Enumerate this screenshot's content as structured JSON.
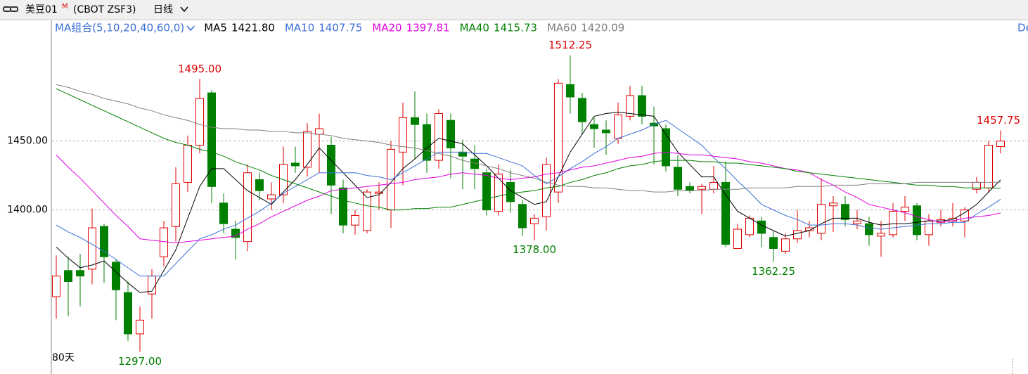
{
  "chart_data": {
    "type": "candlestick",
    "title": "美豆01",
    "title_sup": "M",
    "subtitle": "(CBOT ZSF3)",
    "period": "日线",
    "ma_label": "MA组合(5,10,20,40,60,0)",
    "span_label": "80天",
    "corner_label": "De",
    "up_color": "#e00000",
    "down_color": "#008000",
    "open": [
      1337,
      1356,
      1356,
      1357,
      1388,
      1362,
      1340,
      1310,
      1339,
      1366,
      1388,
      1420,
      1447,
      1485,
      1405,
      1386,
      1377,
      1422,
      1408,
      1411,
      1434,
      1431,
      1455,
      1447,
      1416,
      1389,
      1385,
      1412,
      1400,
      1442,
      1467,
      1462,
      1436,
      1465,
      1442,
      1437,
      1427,
      1399,
      1420,
      1404,
      1390,
      1395,
      1413,
      1491,
      1481,
      1462,
      1458,
      1452,
      1468,
      1483,
      1463,
      1459,
      1431,
      1417,
      1415,
      1415,
      1420,
      1372,
      1382,
      1392,
      1380,
      1370,
      1379,
      1385,
      1383,
      1403,
      1404,
      1390,
      1390,
      1381,
      1382,
      1399,
      1403,
      1382,
      1391,
      1392,
      1392,
      1415,
      1416,
      1446
    ],
    "high": [
      1367,
      1366,
      1368,
      1401,
      1390,
      1364,
      1348,
      1330,
      1357,
      1392,
      1431,
      1454,
      1495,
      1487,
      1412,
      1392,
      1433,
      1427,
      1420,
      1446,
      1446,
      1463,
      1470,
      1453,
      1422,
      1400,
      1415,
      1420,
      1450,
      1478,
      1486,
      1470,
      1473,
      1470,
      1451,
      1447,
      1430,
      1433,
      1429,
      1407,
      1397,
      1438,
      1495,
      1512.25,
      1485,
      1467,
      1465,
      1478,
      1490,
      1490,
      1475,
      1462,
      1440,
      1420,
      1419,
      1432,
      1435,
      1390,
      1396,
      1395,
      1385,
      1383,
      1400,
      1392,
      1423,
      1410,
      1410,
      1400,
      1395,
      1392,
      1405,
      1410,
      1405,
      1397,
      1400,
      1405,
      1402,
      1424,
      1450,
      1457.75
    ],
    "low": [
      1321,
      1323,
      1330,
      1346,
      1347,
      1320,
      1305,
      1297,
      1321,
      1359,
      1377,
      1413,
      1441,
      1405,
      1383,
      1364,
      1370,
      1407,
      1400,
      1405,
      1427,
      1424,
      1427,
      1397,
      1383,
      1382,
      1383,
      1400,
      1387,
      1418,
      1437,
      1427,
      1430,
      1423,
      1415,
      1415,
      1396,
      1396,
      1398,
      1381,
      1378,
      1385,
      1405,
      1470,
      1455,
      1445,
      1440,
      1448,
      1465,
      1462,
      1433,
      1428,
      1410,
      1412,
      1397,
      1412,
      1373,
      1372,
      1380,
      1373,
      1362.25,
      1368,
      1376,
      1380,
      1378,
      1384,
      1388,
      1386,
      1374,
      1366,
      1380,
      1392,
      1378,
      1374,
      1388,
      1388,
      1380,
      1412,
      1413,
      1441
    ],
    "close": [
      1352,
      1348,
      1352,
      1387,
      1366,
      1342,
      1310,
      1320,
      1352,
      1387,
      1419,
      1447,
      1481,
      1417,
      1390,
      1380,
      1427,
      1414,
      1411,
      1433,
      1432,
      1457,
      1459,
      1418,
      1389,
      1396,
      1413,
      1413,
      1444,
      1467,
      1462,
      1436,
      1470,
      1445,
      1439,
      1430,
      1400,
      1426,
      1406,
      1387,
      1394,
      1433,
      1492,
      1482,
      1464,
      1459,
      1456,
      1469,
      1483,
      1468,
      1461,
      1432,
      1415,
      1414,
      1417,
      1420,
      1375,
      1386,
      1394,
      1383,
      1372,
      1379,
      1385,
      1387,
      1404,
      1405,
      1393,
      1392,
      1382,
      1383,
      1399,
      1402,
      1382,
      1392,
      1393,
      1394,
      1400,
      1420,
      1447,
      1450
    ],
    "series": [
      {
        "name": "MA5",
        "legend_value": "1421.80",
        "color": "#000000",
        "values": [
          1373,
          1365,
          1358,
          1360,
          1363,
          1355,
          1347,
          1340,
          1341,
          1356,
          1371,
          1394,
          1417,
          1430,
          1430,
          1422,
          1414,
          1409,
          1404,
          1413,
          1422,
          1433,
          1445,
          1436,
          1427,
          1418,
          1409,
          1411,
          1420,
          1430,
          1437,
          1445,
          1452,
          1450,
          1448,
          1440,
          1432,
          1423,
          1414,
          1409,
          1404,
          1406,
          1424,
          1442,
          1455,
          1468,
          1470,
          1471,
          1470,
          1469,
          1468,
          1455,
          1442,
          1433,
          1424,
          1424,
          1411,
          1399,
          1394,
          1389,
          1385,
          1381,
          1383,
          1385,
          1390,
          1394,
          1394,
          1394,
          1391,
          1389,
          1390,
          1390,
          1391,
          1392,
          1392,
          1393,
          1398,
          1404,
          1413,
          1421.8
        ]
      },
      {
        "name": "MA10",
        "legend_value": "1407.75",
        "color": "#3b6fd6",
        "values": [
          1389,
          1384,
          1380,
          1375,
          1370,
          1364,
          1358,
          1352,
          1352,
          1352,
          1361,
          1370,
          1379,
          1382,
          1386,
          1389,
          1394,
          1399,
          1405,
          1412,
          1417,
          1422,
          1427,
          1427,
          1427,
          1427,
          1425,
          1424,
          1422,
          1427,
          1432,
          1437,
          1442,
          1442,
          1442,
          1441,
          1441,
          1438,
          1435,
          1432,
          1425,
          1419,
          1424,
          1430,
          1435,
          1441,
          1446,
          1452,
          1455,
          1458,
          1462,
          1465,
          1459,
          1453,
          1447,
          1438,
          1430,
          1421,
          1413,
          1404,
          1400,
          1396,
          1393,
          1389,
          1389,
          1390,
          1390,
          1389,
          1387,
          1386,
          1387,
          1388,
          1389,
          1390,
          1390,
          1391,
          1391,
          1397,
          1402,
          1407.75
        ]
      },
      {
        "name": "MA20",
        "legend_value": "1397.81",
        "color": "#e000e0",
        "values": [
          1440,
          1431,
          1423,
          1414,
          1405,
          1396,
          1388,
          1379,
          1378,
          1377,
          1376,
          1377,
          1378,
          1379,
          1380,
          1381,
          1386,
          1390,
          1395,
          1399,
          1403,
          1407,
          1410,
          1414,
          1415,
          1416,
          1417,
          1418,
          1419,
          1420,
          1422,
          1423,
          1424,
          1426,
          1427,
          1426,
          1425,
          1423,
          1422,
          1423,
          1424,
          1426,
          1427,
          1429,
          1431,
          1432,
          1434,
          1436,
          1438,
          1439,
          1441,
          1442,
          1441,
          1440,
          1440,
          1439,
          1438,
          1437,
          1435,
          1434,
          1432,
          1430,
          1429,
          1427,
          1422,
          1418,
          1413,
          1409,
          1404,
          1402,
          1400,
          1398,
          1395,
          1393,
          1391,
          1392,
          1394,
          1395,
          1396,
          1397.81
        ]
      },
      {
        "name": "MA40",
        "legend_value": "1415.73",
        "color": "#008000",
        "values": [
          1488,
          1484,
          1480,
          1476,
          1472,
          1468,
          1464,
          1460,
          1456,
          1452,
          1449,
          1447,
          1444,
          1442,
          1439,
          1435,
          1432,
          1429,
          1425,
          1422,
          1419,
          1416,
          1413,
          1410,
          1407,
          1405,
          1403,
          1402,
          1400,
          1400,
          1401,
          1401,
          1402,
          1402,
          1404,
          1406,
          1408,
          1410,
          1412,
          1413,
          1414,
          1416,
          1417,
          1420,
          1422,
          1425,
          1427,
          1430,
          1432,
          1433,
          1435,
          1436,
          1436,
          1436,
          1435,
          1435,
          1434,
          1434,
          1433,
          1432,
          1431,
          1430,
          1428,
          1427,
          1426,
          1425,
          1424,
          1423,
          1422,
          1421,
          1420,
          1419,
          1418,
          1418,
          1417,
          1417,
          1416,
          1416,
          1416,
          1415.73
        ]
      },
      {
        "name": "MA60",
        "legend_value": "1420.09",
        "color": "#808080",
        "values": [
          1491,
          1489,
          1486,
          1484,
          1481,
          1479,
          1477,
          1474,
          1472,
          1469,
          1467,
          1465,
          1462,
          1460,
          1459,
          1459,
          1458,
          1458,
          1457,
          1457,
          1456,
          1456,
          1455,
          1454,
          1452,
          1451,
          1450,
          1449,
          1447,
          1446,
          1445,
          1443,
          1441,
          1439,
          1436,
          1434,
          1432,
          1430,
          1427,
          1425,
          1423,
          1420,
          1418,
          1417,
          1417,
          1416,
          1416,
          1415,
          1414,
          1414,
          1413,
          1413,
          1414,
          1414,
          1414,
          1415,
          1415,
          1415,
          1416,
          1416,
          1416,
          1416,
          1417,
          1417,
          1417,
          1418,
          1418,
          1418,
          1419,
          1419,
          1419,
          1419,
          1420,
          1420,
          1420,
          1420,
          1420,
          1420,
          1420,
          1420.09
        ]
      }
    ],
    "annotations": [
      {
        "value": 1495,
        "label": "1495.00",
        "color": "#e00000"
      },
      {
        "value": 1297,
        "label": "1297.00",
        "color": "#008000"
      },
      {
        "value": 1378,
        "label": "1378.00",
        "color": "#008000"
      },
      {
        "value": 1512.25,
        "label": "1512.25",
        "color": "#e00000"
      },
      {
        "value": 1362.25,
        "label": "1362.25",
        "color": "#008000"
      },
      {
        "value": 1457.75,
        "label": "1457.75",
        "color": "#e00000"
      }
    ],
    "ylim": [
      1287,
      1532
    ],
    "yticks": [
      {
        "value": 1450,
        "label": "1450.00"
      },
      {
        "value": 1400,
        "label": "1400.00"
      }
    ],
    "grid": true
  }
}
